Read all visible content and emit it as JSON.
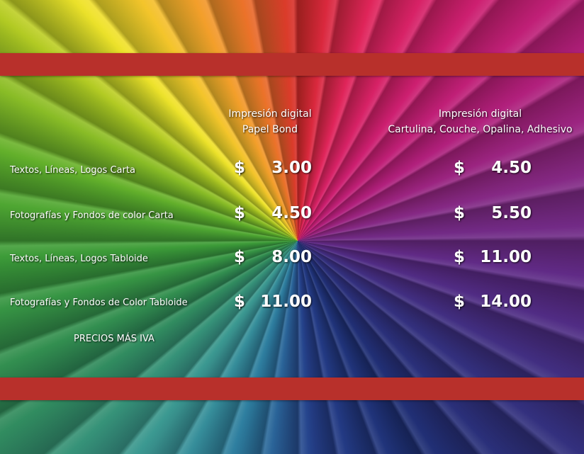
{
  "columns": [
    {
      "title_line1": "Impresión digital",
      "title_line2": "Papel Bond"
    },
    {
      "title_line1": "Impresión digital",
      "title_line2": "Cartulina, Couche,  Opalina, Adhesivo"
    }
  ],
  "rows": [
    {
      "label": "Textos, Líneas, Logos Carta",
      "currency": "$",
      "price_bond": "3.00",
      "price_cartulina": "4.50"
    },
    {
      "label": "Fotografías y Fondos de color Carta",
      "currency": "$",
      "price_bond": "4.50",
      "price_cartulina": "5.50"
    },
    {
      "label": "Textos, Líneas, Logos Tabloide",
      "currency": "$",
      "price_bond": "8.00",
      "price_cartulina": "11.00"
    },
    {
      "label": "Fotografías y Fondos de Color Tabloide",
      "currency": "$",
      "price_bond": "11.00",
      "price_cartulina": "14.00"
    }
  ],
  "note": "PRECIOS MÁS IVA",
  "colors": {
    "band": "#b8302b",
    "text": "#ffffff"
  }
}
